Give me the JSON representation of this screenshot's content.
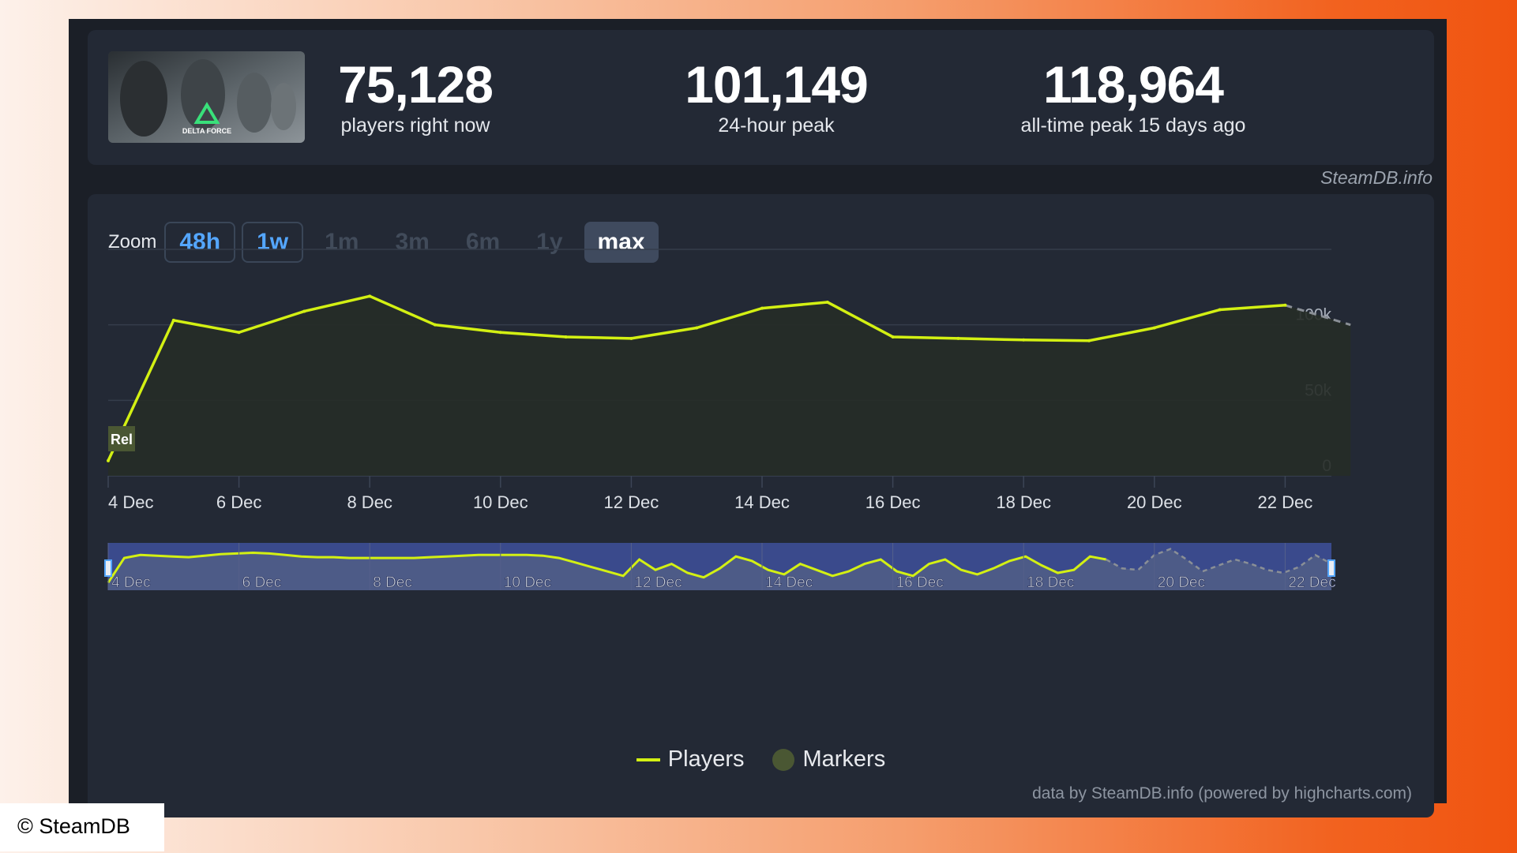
{
  "game_name": "Delta Force",
  "thumbnail_logo_text": "DELTA FORCE",
  "stats": [
    {
      "value": "75,128",
      "label": "players right now"
    },
    {
      "value": "101,149",
      "label": "24-hour peak"
    },
    {
      "value": "118,964",
      "label": "all-time peak 15 days ago"
    }
  ],
  "brand": "SteamDB.info",
  "zoom": {
    "label": "Zoom",
    "options": [
      "48h",
      "1w",
      "1m",
      "3m",
      "6m",
      "1y",
      "max"
    ],
    "selected": "max"
  },
  "legend": {
    "players": "Players",
    "markers": "Markers"
  },
  "credit": "data by SteamDB.info (powered by highcharts.com)",
  "copyright": "© SteamDB",
  "colors": {
    "line": "#d3f013",
    "panel": "#232935",
    "accent": "#54a6ff",
    "navigator": "#3a4a8c"
  },
  "chart_data": {
    "type": "line",
    "x": [
      "4 Dec",
      "5 Dec",
      "6 Dec",
      "7 Dec",
      "8 Dec",
      "9 Dec",
      "10 Dec",
      "11 Dec",
      "12 Dec",
      "13 Dec",
      "14 Dec",
      "15 Dec",
      "16 Dec",
      "17 Dec",
      "18 Dec",
      "19 Dec",
      "20 Dec",
      "21 Dec",
      "22 Dec",
      "23 Dec"
    ],
    "series": [
      {
        "name": "Players",
        "values": [
          10000,
          103000,
          95000,
          109000,
          119000,
          100000,
          95000,
          92000,
          91000,
          98000,
          111000,
          115000,
          92000,
          91000,
          90000,
          89500,
          98000,
          110000,
          113000,
          null
        ]
      },
      {
        "name": "",
        "dashed": true,
        "values": [
          null,
          null,
          null,
          null,
          null,
          null,
          null,
          null,
          null,
          null,
          null,
          null,
          null,
          null,
          null,
          null,
          null,
          null,
          113000,
          100000
        ]
      }
    ],
    "xticks": [
      "4 Dec",
      "6 Dec",
      "8 Dec",
      "10 Dec",
      "12 Dec",
      "14 Dec",
      "16 Dec",
      "18 Dec",
      "20 Dec",
      "22 Dec"
    ],
    "yticks": [
      "0",
      "50k",
      "100k"
    ],
    "ylim": [
      0,
      150000
    ],
    "marker": {
      "x": "4 Dec",
      "label": "Rel"
    },
    "navigator": {
      "labels": [
        "4 Dec",
        "6 Dec",
        "8 Dec",
        "10 Dec",
        "12 Dec",
        "14 Dec",
        "16 Dec",
        "18 Dec",
        "20 Dec",
        "22 Dec"
      ]
    },
    "legend_position": "bottom",
    "grid": true
  }
}
